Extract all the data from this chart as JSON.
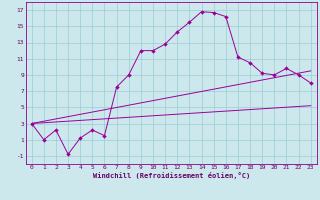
{
  "xlabel": "Windchill (Refroidissement éolien,°C)",
  "bg_color": "#cce8ec",
  "grid_color": "#99ccd4",
  "line_color": "#990099",
  "xlim": [
    -0.5,
    23.5
  ],
  "ylim": [
    -2.0,
    18.0
  ],
  "xticks": [
    0,
    1,
    2,
    3,
    4,
    5,
    6,
    7,
    8,
    9,
    10,
    11,
    12,
    13,
    14,
    15,
    16,
    17,
    18,
    19,
    20,
    21,
    22,
    23
  ],
  "yticks": [
    -1,
    1,
    3,
    5,
    7,
    9,
    11,
    13,
    15,
    17
  ],
  "line1_x": [
    0,
    1,
    2,
    3,
    4,
    5,
    6,
    7,
    8,
    9,
    10,
    11,
    12,
    13,
    14,
    15,
    16,
    17,
    18,
    19,
    20,
    21,
    22,
    23
  ],
  "line1_y": [
    3.0,
    1.0,
    2.2,
    -0.8,
    1.2,
    2.2,
    1.5,
    7.5,
    9.0,
    12.0,
    12.0,
    12.8,
    14.3,
    15.5,
    16.8,
    16.7,
    16.2,
    11.2,
    10.5,
    9.2,
    9.0,
    9.8,
    9.0,
    8.0
  ],
  "line2_x": [
    0,
    23
  ],
  "line2_y": [
    3.0,
    9.5
  ],
  "line3_x": [
    0,
    23
  ],
  "line3_y": [
    3.0,
    5.2
  ]
}
